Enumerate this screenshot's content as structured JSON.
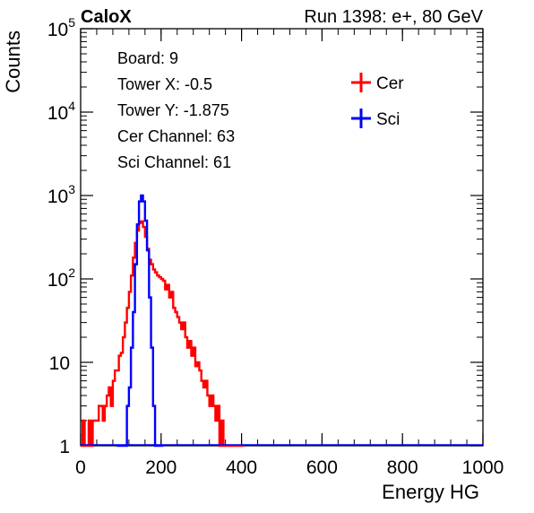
{
  "header": {
    "left_label": "CaloX",
    "right_label": "Run 1398: e+, 80 GeV"
  },
  "info_box": [
    "Board: 9",
    "Tower X: -0.5",
    "Tower Y: -1.875",
    "Cer Channel: 63",
    "Sci Channel: 61"
  ],
  "chart_data": {
    "type": "line",
    "xlabel": "Energy HG",
    "ylabel": "Counts",
    "xlim": [
      0,
      1000
    ],
    "ylim": [
      1,
      100000
    ],
    "yscale": "log",
    "grid": false,
    "legend_position": "top-right",
    "x_ticks": [
      "0",
      "200",
      "400",
      "600",
      "800",
      "1000"
    ],
    "y_ticks": [
      {
        "base": "1",
        "exp": ""
      },
      {
        "base": "10",
        "exp": ""
      },
      {
        "base": "10",
        "exp": "2"
      },
      {
        "base": "10",
        "exp": "3"
      },
      {
        "base": "10",
        "exp": "4"
      },
      {
        "base": "10",
        "exp": "5"
      }
    ],
    "series": [
      {
        "name": "Cer",
        "color": "#ff0000",
        "x": [
          0,
          5,
          10,
          15,
          20,
          25,
          30,
          35,
          40,
          45,
          50,
          55,
          60,
          65,
          70,
          75,
          80,
          85,
          90,
          95,
          100,
          105,
          110,
          115,
          120,
          125,
          130,
          135,
          140,
          145,
          150,
          155,
          160,
          165,
          170,
          175,
          180,
          185,
          190,
          195,
          200,
          205,
          210,
          215,
          220,
          225,
          230,
          235,
          240,
          245,
          250,
          255,
          260,
          265,
          270,
          275,
          280,
          285,
          290,
          295,
          300,
          305,
          310,
          315,
          320,
          325,
          330,
          335,
          340,
          345,
          350,
          355,
          360,
          365,
          370,
          375,
          380,
          385,
          390,
          395,
          400
        ],
        "values": [
          1,
          2,
          1,
          1,
          2,
          1,
          2,
          2,
          2,
          3,
          3,
          2,
          3,
          4,
          5,
          3,
          6,
          8,
          8,
          12,
          13,
          20,
          30,
          45,
          70,
          110,
          180,
          270,
          380,
          470,
          490,
          420,
          320,
          230,
          170,
          150,
          130,
          120,
          110,
          105,
          100,
          95,
          75,
          85,
          60,
          70,
          45,
          40,
          35,
          30,
          25,
          30,
          20,
          15,
          18,
          12,
          15,
          9,
          10,
          8,
          6,
          5,
          6,
          4,
          3,
          4,
          3,
          2,
          3,
          1,
          2,
          1,
          1,
          1,
          1,
          1,
          1,
          1,
          1,
          1,
          1
        ]
      },
      {
        "name": "Sci",
        "color": "#0000ff",
        "x": [
          90,
          95,
          100,
          105,
          110,
          115,
          120,
          125,
          130,
          135,
          140,
          145,
          150,
          155,
          160,
          165,
          170,
          175,
          180,
          185,
          190,
          195,
          200
        ],
        "values": [
          1,
          1,
          1,
          1,
          1,
          3,
          5,
          15,
          40,
          150,
          450,
          850,
          1000,
          850,
          500,
          220,
          60,
          15,
          3,
          1,
          1,
          1,
          1
        ]
      }
    ]
  }
}
